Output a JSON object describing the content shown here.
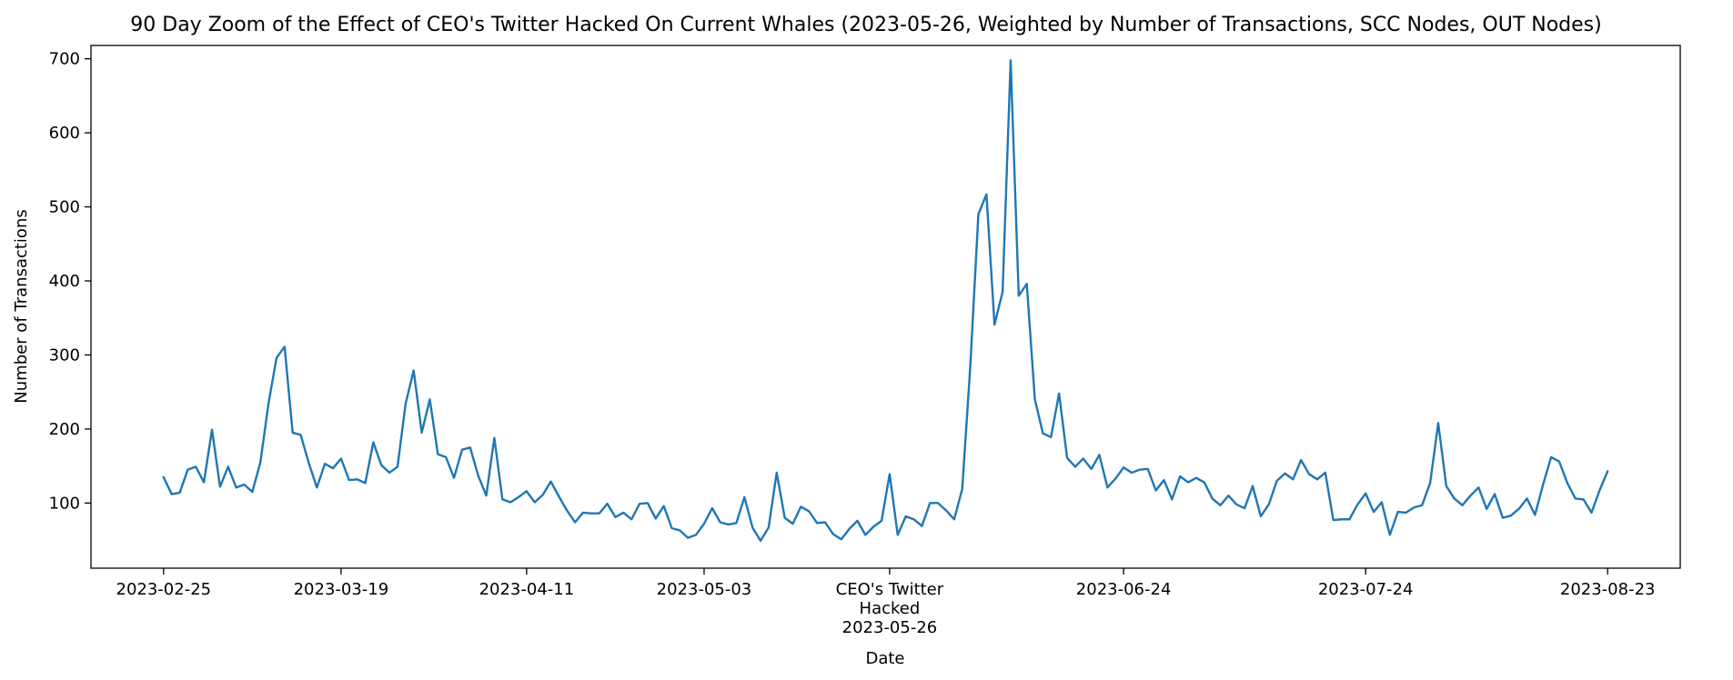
{
  "chart_data": {
    "type": "line",
    "title": "90 Day Zoom of the Effect of CEO's Twitter Hacked On Current Whales (2023-05-26, Weighted by Number of Transactions, SCC Nodes, OUT Nodes)",
    "xlabel": "Date",
    "ylabel": "Number of Transactions",
    "start_date": "2023-02-25",
    "x_ticks": [
      {
        "date": "2023-02-25",
        "lines": [
          "2023-02-25"
        ]
      },
      {
        "date": "2023-03-19",
        "lines": [
          "2023-03-19"
        ]
      },
      {
        "date": "2023-04-11",
        "lines": [
          "2023-04-11"
        ]
      },
      {
        "date": "2023-05-03",
        "lines": [
          "2023-05-03"
        ]
      },
      {
        "date": "2023-05-26",
        "lines": [
          "CEO's Twitter",
          "Hacked",
          "2023-05-26"
        ]
      },
      {
        "date": "2023-06-24",
        "lines": [
          "2023-06-24"
        ]
      },
      {
        "date": "2023-07-24",
        "lines": [
          "2023-07-24"
        ]
      },
      {
        "date": "2023-08-23",
        "lines": [
          "2023-08-23"
        ]
      }
    ],
    "y_ticks": [
      100,
      200,
      300,
      400,
      500,
      600,
      700
    ],
    "xlim": [
      "2023-02-16",
      "2023-09-01"
    ],
    "ylim": [
      12,
      718
    ],
    "grid": false,
    "line_color": "#1f77b4",
    "values": [
      135,
      112,
      114,
      145,
      149,
      128,
      199,
      122,
      149,
      121,
      125,
      115,
      155,
      234,
      296,
      311,
      195,
      192,
      154,
      121,
      153,
      147,
      160,
      131,
      132,
      127,
      182,
      151,
      141,
      149,
      234,
      279,
      195,
      240,
      166,
      162,
      134,
      172,
      175,
      137,
      110,
      188,
      105,
      101,
      108,
      116,
      101,
      111,
      129,
      109,
      90,
      74,
      87,
      86,
      86,
      99,
      81,
      87,
      78,
      99,
      100,
      79,
      96,
      66,
      63,
      53,
      57,
      72,
      93,
      74,
      71,
      73,
      108,
      67,
      49,
      67,
      141,
      80,
      72,
      95,
      89,
      73,
      74,
      58,
      51,
      65,
      76,
      57,
      68,
      76,
      139,
      57,
      82,
      78,
      69,
      100,
      100,
      90,
      78,
      119,
      285,
      490,
      517,
      341,
      385,
      698,
      380,
      396,
      240,
      194,
      189,
      248,
      161,
      149,
      160,
      146,
      165,
      121,
      133,
      148,
      141,
      145,
      146,
      117,
      131,
      105,
      136,
      128,
      134,
      128,
      106,
      97,
      110,
      98,
      93,
      123,
      82,
      98,
      130,
      140,
      132,
      158,
      139,
      132,
      141,
      77,
      78,
      78,
      98,
      113,
      88,
      101,
      57,
      88,
      87,
      94,
      97,
      127,
      208,
      123,
      106,
      97,
      110,
      121,
      92,
      112,
      80,
      83,
      92,
      106,
      84,
      125,
      162,
      156,
      127,
      106,
      105,
      87,
      117,
      143
    ]
  }
}
